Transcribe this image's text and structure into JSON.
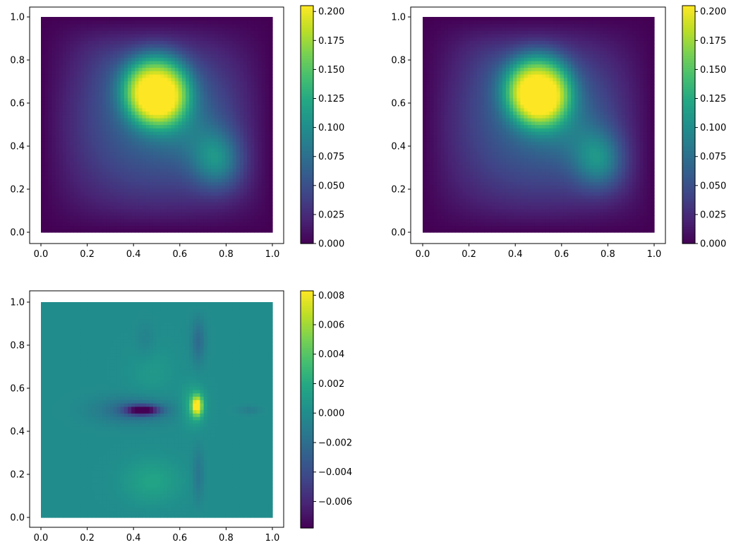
{
  "chart_data": [
    {
      "type": "heatmap",
      "title": "",
      "xlabel": "",
      "ylabel": "",
      "xlim": [
        0,
        1
      ],
      "ylim": [
        0,
        1
      ],
      "x_ticks": [
        "0.0",
        "0.2",
        "0.4",
        "0.6",
        "0.8",
        "1.0"
      ],
      "y_ticks": [
        "0.0",
        "0.2",
        "0.4",
        "0.6",
        "0.8",
        "1.0"
      ],
      "colormap": "viridis",
      "colorbar": {
        "range": [
          0.0,
          0.205
        ],
        "ticks": [
          "0.000",
          "0.025",
          "0.050",
          "0.075",
          "0.100",
          "0.125",
          "0.150",
          "0.175",
          "0.200"
        ]
      },
      "features": [
        {
          "shape": "plateau",
          "center": [
            0.5,
            0.67
          ],
          "value": 0.205
        },
        {
          "shape": "blob",
          "center": [
            0.77,
            0.33
          ],
          "value": 0.14
        }
      ],
      "boundary_value": 0.0
    },
    {
      "type": "heatmap",
      "title": "",
      "xlabel": "",
      "ylabel": "",
      "xlim": [
        0,
        1
      ],
      "ylim": [
        0,
        1
      ],
      "x_ticks": [
        "0.0",
        "0.2",
        "0.4",
        "0.6",
        "0.8",
        "1.0"
      ],
      "y_ticks": [
        "0.0",
        "0.2",
        "0.4",
        "0.6",
        "0.8",
        "1.0"
      ],
      "colormap": "viridis",
      "colorbar": {
        "range": [
          0.0,
          0.205
        ],
        "ticks": [
          "0.000",
          "0.025",
          "0.050",
          "0.075",
          "0.100",
          "0.125",
          "0.150",
          "0.175",
          "0.200"
        ]
      },
      "features": [
        {
          "shape": "plateau",
          "center": [
            0.5,
            0.67
          ],
          "value": 0.205
        },
        {
          "shape": "blob",
          "center": [
            0.77,
            0.33
          ],
          "value": 0.14
        }
      ],
      "boundary_value": 0.0
    },
    {
      "type": "heatmap",
      "title": "",
      "xlabel": "",
      "ylabel": "",
      "xlim": [
        0,
        1
      ],
      "ylim": [
        0,
        1
      ],
      "x_ticks": [
        "0.0",
        "0.2",
        "0.4",
        "0.6",
        "0.8",
        "1.0"
      ],
      "y_ticks": [
        "0.0",
        "0.2",
        "0.4",
        "0.6",
        "0.8",
        "1.0"
      ],
      "colormap": "viridis",
      "colorbar": {
        "range": [
          -0.0078,
          0.0083
        ],
        "ticks": [
          "−0.006",
          "−0.004",
          "−0.002",
          "0.000",
          "0.002",
          "0.004",
          "0.006",
          "0.008"
        ]
      },
      "features": [
        {
          "shape": "spike",
          "center": [
            0.67,
            0.52
          ],
          "value": 0.0083
        },
        {
          "shape": "ellipse",
          "center": [
            0.45,
            0.5
          ],
          "value": -0.0078
        },
        {
          "shape": "blob",
          "center": [
            0.48,
            0.17
          ],
          "value": 0.0015
        },
        {
          "shape": "ellipse",
          "center": [
            0.68,
            0.82
          ],
          "value": -0.002
        },
        {
          "shape": "ellipse",
          "center": [
            0.68,
            0.2
          ],
          "value": -0.0015
        }
      ],
      "boundary_value": 0.0
    }
  ]
}
